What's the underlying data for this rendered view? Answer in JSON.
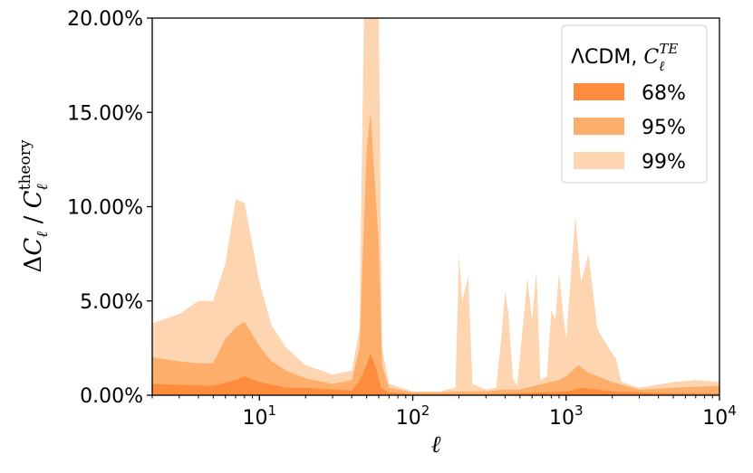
{
  "chart_data": {
    "type": "area",
    "xscale": "log",
    "xlim": [
      2,
      10000
    ],
    "ylim": [
      0,
      20
    ],
    "xlabel": "ℓ",
    "ylabel": "ΔC_ℓ / C_ℓ^theory",
    "x_ticks": [
      {
        "value": 10,
        "base": "10",
        "exp": "1"
      },
      {
        "value": 100,
        "base": "10",
        "exp": "2"
      },
      {
        "value": 1000,
        "base": "10",
        "exp": "3"
      },
      {
        "value": 10000,
        "base": "10",
        "exp": "4"
      }
    ],
    "y_ticks": [
      {
        "value": 0,
        "label": "0.00%"
      },
      {
        "value": 5,
        "label": "5.00%"
      },
      {
        "value": 10,
        "label": "10.00%"
      },
      {
        "value": 15,
        "label": "15.00%"
      },
      {
        "value": 20,
        "label": "20.00%"
      }
    ],
    "legend": {
      "title": "ΛCDM, C_ℓ^TE",
      "placement": "top-right"
    },
    "series": [
      {
        "name": "99%",
        "color": "#fdd5b0",
        "points": [
          [
            2,
            3.8
          ],
          [
            3,
            4.3
          ],
          [
            4,
            5.0
          ],
          [
            5,
            5.0
          ],
          [
            6,
            7.0
          ],
          [
            7,
            10.4
          ],
          [
            8,
            10.2
          ],
          [
            10,
            6.0
          ],
          [
            12,
            3.7
          ],
          [
            15,
            2.5
          ],
          [
            20,
            1.6
          ],
          [
            30,
            1.1
          ],
          [
            40,
            1.3
          ],
          [
            45,
            3.5
          ],
          [
            48,
            20.0
          ],
          [
            60,
            20.0
          ],
          [
            63,
            2.5
          ],
          [
            70,
            0.6
          ],
          [
            100,
            0.2
          ],
          [
            150,
            0.2
          ],
          [
            190,
            0.4
          ],
          [
            200,
            7.5
          ],
          [
            210,
            5.0
          ],
          [
            230,
            6.3
          ],
          [
            245,
            0.6
          ],
          [
            300,
            0.3
          ],
          [
            350,
            0.4
          ],
          [
            380,
            3.2
          ],
          [
            400,
            5.5
          ],
          [
            420,
            4.4
          ],
          [
            450,
            0.9
          ],
          [
            480,
            0.5
          ],
          [
            530,
            4.2
          ],
          [
            560,
            6.2
          ],
          [
            600,
            4.0
          ],
          [
            640,
            6.6
          ],
          [
            680,
            0.8
          ],
          [
            750,
            1.0
          ],
          [
            800,
            4.5
          ],
          [
            850,
            4.0
          ],
          [
            900,
            6.5
          ],
          [
            950,
            4.5
          ],
          [
            1000,
            3.0
          ],
          [
            1100,
            7.5
          ],
          [
            1150,
            9.5
          ],
          [
            1250,
            6.0
          ],
          [
            1400,
            7.5
          ],
          [
            1600,
            3.5
          ],
          [
            1800,
            2.8
          ],
          [
            2000,
            2.2
          ],
          [
            2100,
            2.0
          ],
          [
            2300,
            0.7
          ],
          [
            3000,
            0.4
          ],
          [
            5000,
            0.7
          ],
          [
            7000,
            0.8
          ],
          [
            10000,
            0.7
          ]
        ]
      },
      {
        "name": "95%",
        "color": "#fdae6b",
        "points": [
          [
            2,
            2.0
          ],
          [
            3,
            1.8
          ],
          [
            4,
            1.7
          ],
          [
            5,
            1.7
          ],
          [
            6,
            3.0
          ],
          [
            7,
            3.6
          ],
          [
            8,
            3.9
          ],
          [
            10,
            2.6
          ],
          [
            12,
            1.8
          ],
          [
            15,
            1.3
          ],
          [
            20,
            0.9
          ],
          [
            30,
            0.6
          ],
          [
            40,
            0.8
          ],
          [
            45,
            2.5
          ],
          [
            50,
            13.0
          ],
          [
            53,
            15.0
          ],
          [
            60,
            8.0
          ],
          [
            63,
            1.6
          ],
          [
            70,
            0.4
          ],
          [
            100,
            0.15
          ],
          [
            150,
            0.15
          ],
          [
            200,
            0.2
          ],
          [
            300,
            0.2
          ],
          [
            400,
            0.3
          ],
          [
            500,
            0.3
          ],
          [
            700,
            0.6
          ],
          [
            900,
            0.8
          ],
          [
            1000,
            1.0
          ],
          [
            1200,
            1.6
          ],
          [
            1400,
            1.2
          ],
          [
            2000,
            0.7
          ],
          [
            3000,
            0.3
          ],
          [
            5000,
            0.4
          ],
          [
            10000,
            0.5
          ]
        ]
      },
      {
        "name": "68%",
        "color": "#fd8d3c",
        "points": [
          [
            2,
            0.6
          ],
          [
            3,
            0.55
          ],
          [
            5,
            0.5
          ],
          [
            7,
            0.8
          ],
          [
            8,
            1.0
          ],
          [
            10,
            0.7
          ],
          [
            15,
            0.4
          ],
          [
            20,
            0.4
          ],
          [
            30,
            0.3
          ],
          [
            40,
            0.25
          ],
          [
            45,
            0.8
          ],
          [
            50,
            1.6
          ],
          [
            53,
            2.2
          ],
          [
            58,
            1.4
          ],
          [
            62,
            0.4
          ],
          [
            70,
            0.15
          ],
          [
            100,
            0.05
          ],
          [
            300,
            0.05
          ],
          [
            500,
            0.1
          ],
          [
            1000,
            0.2
          ],
          [
            1300,
            0.4
          ],
          [
            2000,
            0.2
          ],
          [
            5000,
            0.1
          ],
          [
            10000,
            0.1
          ]
        ]
      }
    ]
  }
}
